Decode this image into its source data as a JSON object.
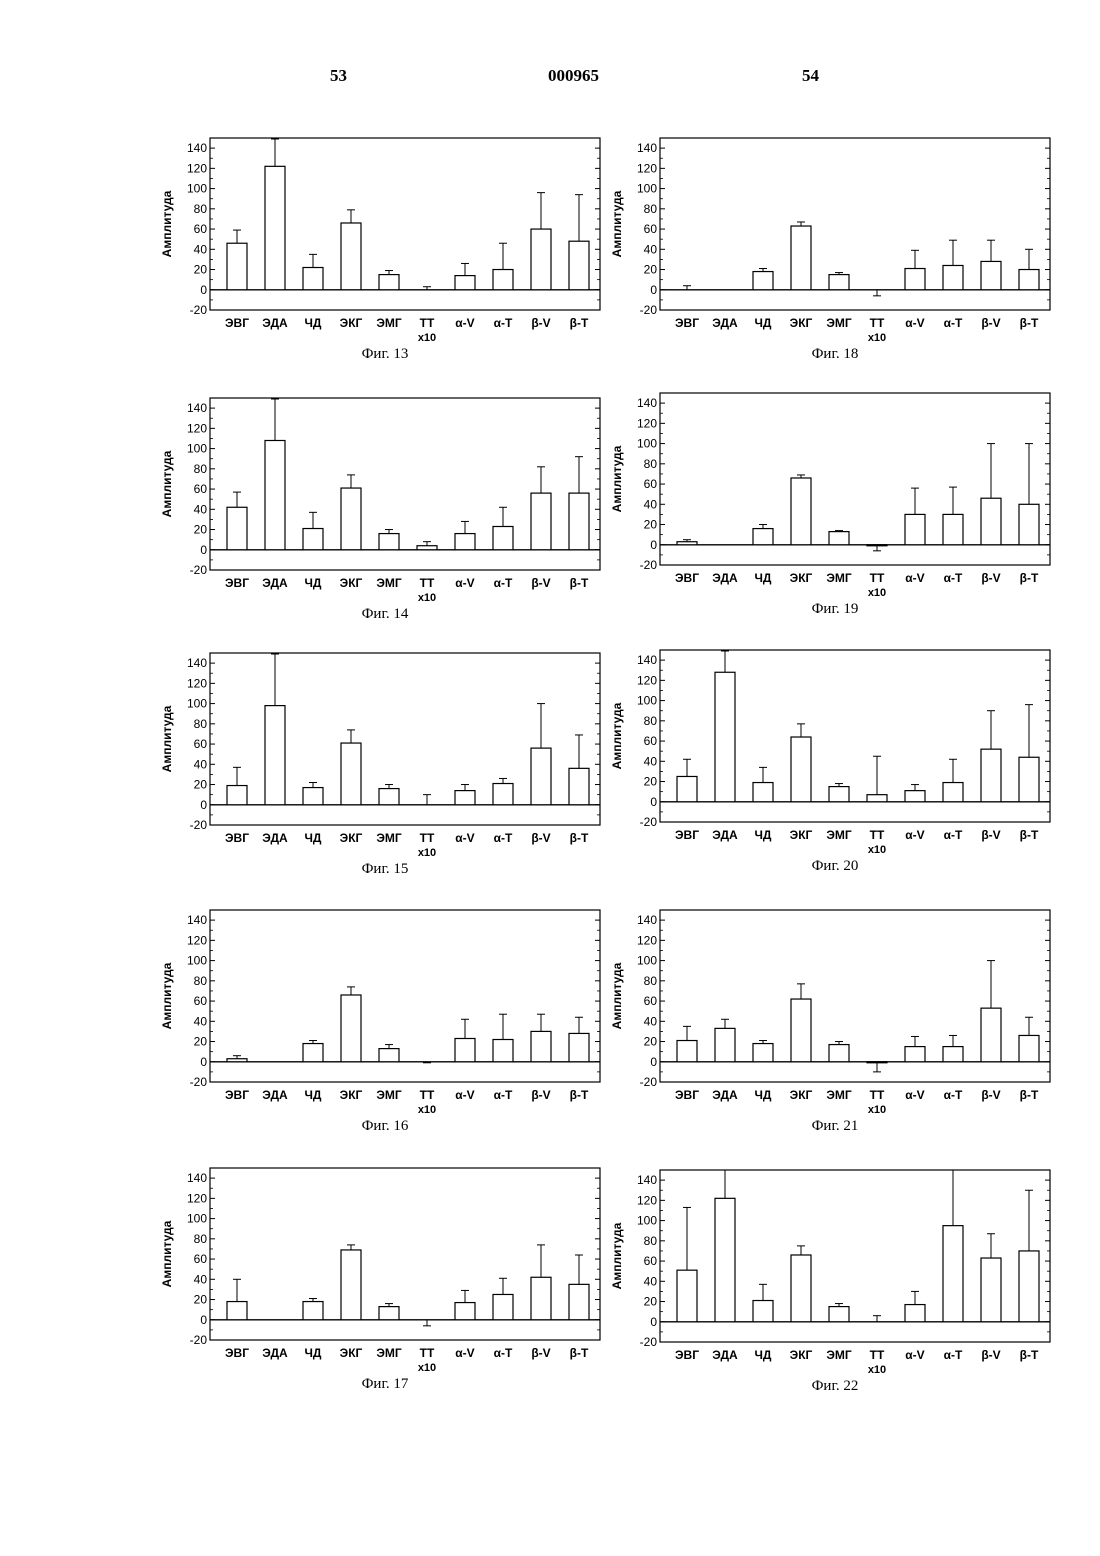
{
  "page_header": {
    "left": "53",
    "center": "000965",
    "right": "54"
  },
  "chart_data": [
    {
      "type": "bar",
      "title": "",
      "caption": "Фиг. 13",
      "ylabel": "Амплитуда",
      "ylim": [
        -20,
        150
      ],
      "yticks": [
        -20,
        0,
        20,
        40,
        60,
        80,
        100,
        120,
        140
      ],
      "categories": [
        "ЭВГ",
        "ЭДА",
        "ЧД",
        "ЭКГ",
        "ЭМГ",
        "ТТ",
        "α-V",
        "α-T",
        "β-V",
        "β-T"
      ],
      "category_sublabel": {
        "ТТ": "x10"
      },
      "values": [
        46,
        122,
        22,
        66,
        15,
        0,
        14,
        20,
        60,
        48
      ],
      "error_upper": [
        59,
        149,
        35,
        79,
        19,
        3,
        26,
        46,
        96,
        94
      ]
    },
    {
      "type": "bar",
      "title": "",
      "caption": "Фиг. 14",
      "ylabel": "Амплитуда",
      "ylim": [
        -20,
        150
      ],
      "yticks": [
        -20,
        0,
        20,
        40,
        60,
        80,
        100,
        120,
        140
      ],
      "categories": [
        "ЭВГ",
        "ЭДА",
        "ЧД",
        "ЭКГ",
        "ЭМГ",
        "ТТ",
        "α-V",
        "α-T",
        "β-V",
        "β-T"
      ],
      "category_sublabel": {
        "ТТ": "x10"
      },
      "values": [
        42,
        108,
        21,
        61,
        16,
        4,
        16,
        23,
        56,
        56
      ],
      "error_upper": [
        57,
        149,
        37,
        74,
        20,
        8,
        28,
        42,
        82,
        92
      ]
    },
    {
      "type": "bar",
      "title": "",
      "caption": "Фиг. 15",
      "ylabel": "Амплитуда",
      "ylim": [
        -20,
        150
      ],
      "yticks": [
        -20,
        0,
        20,
        40,
        60,
        80,
        100,
        120,
        140
      ],
      "categories": [
        "ЭВГ",
        "ЭДА",
        "ЧД",
        "ЭКГ",
        "ЭМГ",
        "ТТ",
        "α-V",
        "α-T",
        "β-V",
        "β-T"
      ],
      "category_sublabel": {
        "ТТ": "x10"
      },
      "values": [
        19,
        98,
        17,
        61,
        16,
        0,
        14,
        21,
        56,
        36
      ],
      "error_upper": [
        37,
        149,
        22,
        74,
        20,
        10,
        20,
        26,
        100,
        69
      ]
    },
    {
      "type": "bar",
      "title": "",
      "caption": "Фиг. 16",
      "ylabel": "Амплитуда",
      "ylim": [
        -20,
        150
      ],
      "yticks": [
        -20,
        0,
        20,
        40,
        60,
        80,
        100,
        120,
        140
      ],
      "categories": [
        "ЭВГ",
        "ЭДА",
        "ЧД",
        "ЭКГ",
        "ЭМГ",
        "ТТ",
        "α-V",
        "α-T",
        "β-V",
        "β-T"
      ],
      "category_sublabel": {
        "ТТ": "x10"
      },
      "values": [
        3,
        0,
        18,
        66,
        13,
        0,
        23,
        22,
        30,
        28
      ],
      "error_upper": [
        6,
        0,
        21,
        74,
        17,
        -1,
        42,
        47,
        47,
        44
      ]
    },
    {
      "type": "bar",
      "title": "",
      "caption": "Фиг. 17",
      "ylabel": "Амплитуда",
      "ylim": [
        -20,
        150
      ],
      "yticks": [
        -20,
        0,
        20,
        40,
        60,
        80,
        100,
        120,
        140
      ],
      "categories": [
        "ЭВГ",
        "ЭДА",
        "ЧД",
        "ЭКГ",
        "ЭМГ",
        "ТТ",
        "α-V",
        "α-T",
        "β-V",
        "β-T"
      ],
      "category_sublabel": {
        "ТТ": "x10"
      },
      "values": [
        18,
        0,
        18,
        69,
        13,
        0,
        17,
        25,
        42,
        35
      ],
      "error_upper": [
        40,
        0,
        21,
        74,
        16,
        -6,
        29,
        41,
        74,
        64
      ]
    },
    {
      "type": "bar",
      "title": "",
      "caption": "Фиг. 18",
      "ylabel": "Амплитуда",
      "ylim": [
        -20,
        150
      ],
      "yticks": [
        -20,
        0,
        20,
        40,
        60,
        80,
        100,
        120,
        140
      ],
      "categories": [
        "ЭВГ",
        "ЭДА",
        "ЧД",
        "ЭКГ",
        "ЭМГ",
        "ТТ",
        "α-V",
        "α-T",
        "β-V",
        "β-T"
      ],
      "category_sublabel": {
        "ТТ": "x10"
      },
      "values": [
        0,
        0,
        18,
        63,
        15,
        0,
        21,
        24,
        28,
        20
      ],
      "error_upper": [
        4,
        0,
        21,
        67,
        17,
        -6,
        39,
        49,
        49,
        40
      ]
    },
    {
      "type": "bar",
      "title": "",
      "caption": "Фиг. 19",
      "ylabel": "Амплитуда",
      "ylim": [
        -20,
        150
      ],
      "yticks": [
        -20,
        0,
        20,
        40,
        60,
        80,
        100,
        120,
        140
      ],
      "categories": [
        "ЭВГ",
        "ЭДА",
        "ЧД",
        "ЭКГ",
        "ЭМГ",
        "ТТ",
        "α-V",
        "α-T",
        "β-V",
        "β-T"
      ],
      "category_sublabel": {
        "ТТ": "x10"
      },
      "values": [
        3,
        0,
        16,
        66,
        13,
        -1,
        30,
        30,
        46,
        40
      ],
      "error_upper": [
        5,
        0,
        20,
        69,
        14,
        -6,
        56,
        57,
        100,
        100
      ]
    },
    {
      "type": "bar",
      "title": "",
      "caption": "Фиг. 20",
      "ylabel": "Амплитуда",
      "ylim": [
        -20,
        150
      ],
      "yticks": [
        -20,
        0,
        20,
        40,
        60,
        80,
        100,
        120,
        140
      ],
      "categories": [
        "ЭВГ",
        "ЭДА",
        "ЧД",
        "ЭКГ",
        "ЭМГ",
        "ТТ",
        "α-V",
        "α-T",
        "β-V",
        "β-T"
      ],
      "category_sublabel": {
        "ТТ": "x10"
      },
      "values": [
        25,
        128,
        19,
        64,
        15,
        7,
        11,
        19,
        52,
        44
      ],
      "error_upper": [
        42,
        149,
        34,
        77,
        18,
        45,
        17,
        42,
        90,
        96
      ]
    },
    {
      "type": "bar",
      "title": "",
      "caption": "Фиг. 21",
      "ylabel": "Амплитуда",
      "ylim": [
        -20,
        150
      ],
      "yticks": [
        -20,
        0,
        20,
        40,
        60,
        80,
        100,
        120,
        140
      ],
      "categories": [
        "ЭВГ",
        "ЭДА",
        "ЧД",
        "ЭКГ",
        "ЭМГ",
        "ТТ",
        "α-V",
        "α-T",
        "β-V",
        "β-T"
      ],
      "category_sublabel": {
        "ТТ": "x10"
      },
      "values": [
        21,
        33,
        18,
        62,
        17,
        -1,
        15,
        15,
        53,
        26
      ],
      "error_upper": [
        35,
        42,
        21,
        77,
        20,
        -10,
        25,
        26,
        100,
        44
      ]
    },
    {
      "type": "bar",
      "title": "",
      "caption": "Фиг. 22",
      "ylabel": "Амплитуда",
      "ylim": [
        -20,
        150
      ],
      "yticks": [
        -20,
        0,
        20,
        40,
        60,
        80,
        100,
        120,
        140
      ],
      "categories": [
        "ЭВГ",
        "ЭДА",
        "ЧД",
        "ЭКГ",
        "ЭМГ",
        "ТТ",
        "α-V",
        "α-T",
        "β-V",
        "β-T"
      ],
      "category_sublabel": {
        "ТТ": "x10"
      },
      "values": [
        51,
        122,
        21,
        66,
        15,
        0,
        17,
        95,
        63,
        70
      ],
      "error_upper": [
        113,
        150,
        37,
        75,
        18,
        6,
        30,
        150,
        87,
        130
      ]
    }
  ]
}
